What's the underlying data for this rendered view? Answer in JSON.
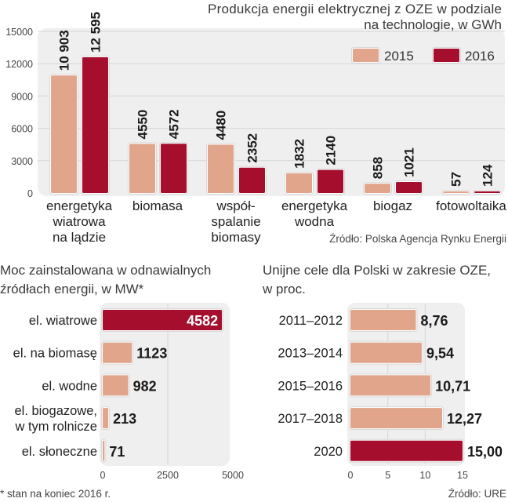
{
  "colors": {
    "y2015": "#e0a58a",
    "y2016": "#a50f2d",
    "plot_bg": "#efefef",
    "grid": "#d6d6d6"
  },
  "chart_data": [
    {
      "type": "bar",
      "title": "Produkcja energii elektrycznej z OZE w podziale na technologie, w GWh",
      "title_lines": [
        "Produkcja energii elektrycznej z OZE w podziale",
        "na technologie, w GWh"
      ],
      "categories": [
        [
          "energetyka",
          "wiatrowa",
          "na lądzie"
        ],
        [
          "biomasa"
        ],
        [
          "współ-",
          "spalanie",
          "biomasy"
        ],
        [
          "energetyka",
          "wodna"
        ],
        [
          "biogaz"
        ],
        [
          "fotowoltaika"
        ]
      ],
      "series": [
        {
          "name": "2015",
          "values": [
            10903,
            4550,
            4480,
            1832,
            858,
            57
          ],
          "labels": [
            "10 903",
            "4550",
            "4480",
            "1832",
            "858",
            "57"
          ]
        },
        {
          "name": "2016",
          "values": [
            12595,
            4572,
            2352,
            2140,
            1021,
            124
          ],
          "labels": [
            "12 595",
            "4572",
            "2352",
            "2140",
            "1021",
            "124"
          ]
        }
      ],
      "yticks": [
        "0",
        "3000",
        "6000",
        "9000",
        "12000",
        "15000"
      ],
      "ylim": [
        0,
        15000
      ],
      "grid": true,
      "legend": "top-right",
      "source": "Źródło: Polska Agencja Rynku Energii"
    },
    {
      "type": "bar",
      "orientation": "horizontal",
      "title_lines": [
        "Moc zainstalowana w odnawialnych",
        "źródłach energii, w MW*"
      ],
      "categories": [
        [
          "el. wiatrowe"
        ],
        [
          "el. na biomasę"
        ],
        [
          "el. wodne"
        ],
        [
          "el. biogazowe,",
          "w tym rolnicze"
        ],
        [
          "el. słoneczne"
        ]
      ],
      "values": [
        4582,
        1123,
        982,
        213,
        71
      ],
      "labels": [
        "4582",
        "1123",
        "982",
        "213",
        "71"
      ],
      "highlight": [
        true,
        false,
        false,
        false,
        false
      ],
      "xticks": [
        "0",
        "2500",
        "5000"
      ],
      "xlim": [
        0,
        5000
      ],
      "footnote": "* stan na koniec  2016 r."
    },
    {
      "type": "bar",
      "orientation": "horizontal",
      "title_lines": [
        "Unijne cele dla Polski w zakresie OZE,",
        "w proc."
      ],
      "categories": [
        [
          "2011–2012"
        ],
        [
          "2013–2014"
        ],
        [
          "2015–2016"
        ],
        [
          "2017–2018"
        ],
        [
          "2020"
        ]
      ],
      "values": [
        8.76,
        9.54,
        10.71,
        12.27,
        15.0
      ],
      "labels": [
        "8,76",
        "9,54",
        "10,71",
        "12,27",
        "15,00"
      ],
      "highlight": [
        false,
        false,
        false,
        false,
        true
      ],
      "xticks": [
        "0",
        "5",
        "10",
        "15"
      ],
      "xlim": [
        0,
        15
      ],
      "source": "Źródło: URE"
    }
  ]
}
